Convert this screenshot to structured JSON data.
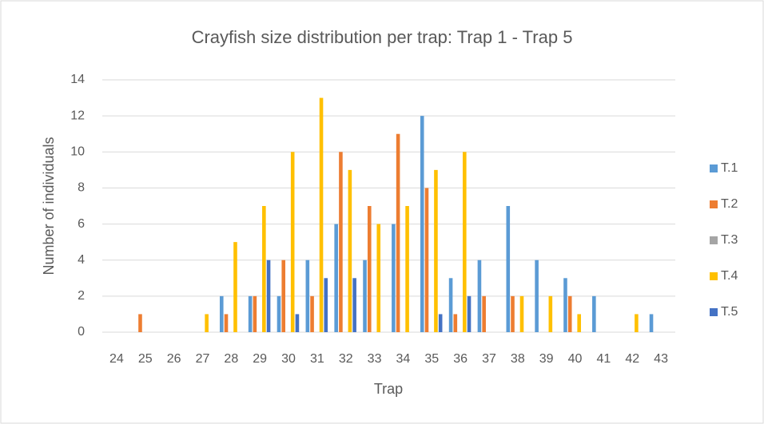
{
  "chart_data": {
    "type": "bar",
    "title": "Crayfish size distribution per trap: Trap 1 - Trap 5",
    "xlabel": "Trap",
    "ylabel": "Number of individuals",
    "categories": [
      "24",
      "25",
      "26",
      "27",
      "28",
      "29",
      "30",
      "31",
      "32",
      "33",
      "34",
      "35",
      "36",
      "37",
      "38",
      "39",
      "40",
      "41",
      "42",
      "43"
    ],
    "series": [
      {
        "name": "T.1",
        "color": "#5b9bd5",
        "values": [
          0,
          0,
          0,
          0,
          2,
          2,
          2,
          4,
          6,
          4,
          6,
          12,
          3,
          4,
          7,
          4,
          3,
          2,
          0,
          1
        ]
      },
      {
        "name": "T.2",
        "color": "#ed7d31",
        "values": [
          0,
          1,
          0,
          0,
          1,
          2,
          4,
          2,
          10,
          7,
          11,
          8,
          1,
          2,
          2,
          0,
          2,
          0,
          0,
          0
        ]
      },
      {
        "name": "T.3",
        "color": "#a5a5a5",
        "values": [
          0,
          0,
          0,
          0,
          0,
          0,
          0,
          0,
          0,
          0,
          0,
          0,
          0,
          0,
          0,
          0,
          0,
          0,
          0,
          0
        ]
      },
      {
        "name": "T.4",
        "color": "#ffc000",
        "values": [
          0,
          0,
          0,
          1,
          5,
          7,
          10,
          13,
          9,
          6,
          7,
          9,
          10,
          0,
          2,
          2,
          1,
          0,
          1,
          0
        ]
      },
      {
        "name": "T.5",
        "color": "#4472c4",
        "values": [
          0,
          0,
          0,
          0,
          0,
          4,
          1,
          3,
          3,
          0,
          0,
          1,
          2,
          0,
          0,
          0,
          0,
          0,
          0,
          0
        ]
      }
    ],
    "ylim": [
      0,
      14
    ],
    "yticks": [
      0,
      2,
      4,
      6,
      8,
      10,
      12,
      14
    ],
    "grid": true,
    "legend": "right"
  }
}
